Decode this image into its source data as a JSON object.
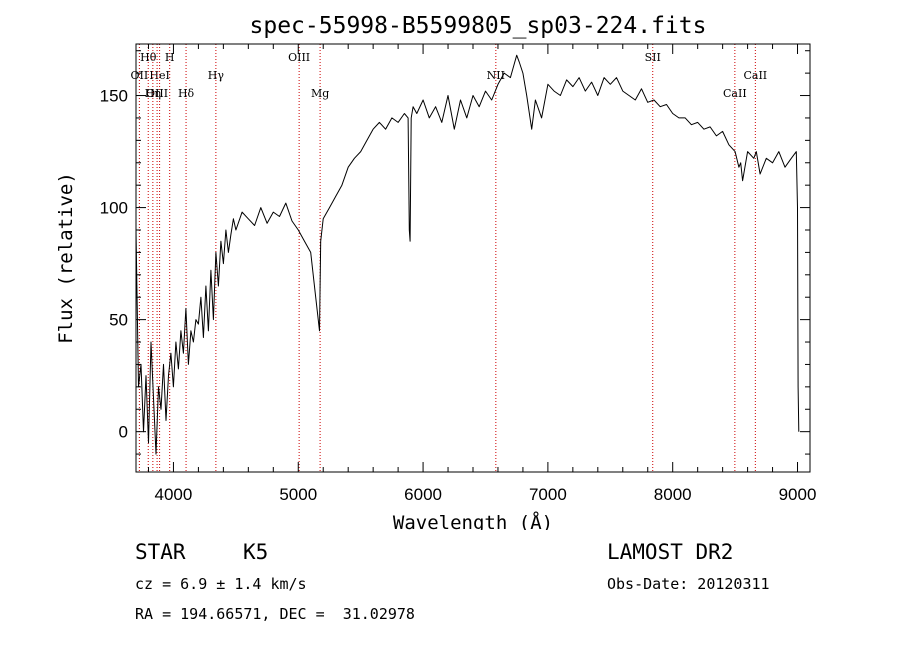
{
  "chart_data": {
    "type": "line",
    "title": "spec-55998-B5599805_sp03-224.fits",
    "xlabel": "Wavelength (Å)",
    "ylabel": "Flux (relative)",
    "xlim": [
      3700,
      9100
    ],
    "ylim": [
      -18,
      173
    ],
    "xticks": [
      4000,
      5000,
      6000,
      7000,
      8000,
      9000
    ],
    "yticks": [
      0,
      50,
      100,
      150
    ],
    "grid": false,
    "line_color": "#000000",
    "marker_color": "#cc0000",
    "series": [
      {
        "x": [
          3700,
          3720,
          3740,
          3760,
          3780,
          3800,
          3820,
          3840,
          3860,
          3880,
          3900,
          3920,
          3940,
          3960,
          3980,
          4000,
          4020,
          4040,
          4060,
          4080,
          4100,
          4120,
          4140,
          4160,
          4180,
          4200,
          4220,
          4240,
          4260,
          4280,
          4300,
          4320,
          4340,
          4360,
          4380,
          4400,
          4420,
          4440,
          4460,
          4480,
          4500,
          4550,
          4600,
          4650,
          4700,
          4750,
          4800,
          4850,
          4900,
          4950,
          5000,
          5050,
          5100,
          5140,
          5170,
          5180,
          5200,
          5250,
          5300,
          5350,
          5400,
          5450,
          5500,
          5550,
          5600,
          5650,
          5700,
          5750,
          5800,
          5850,
          5880,
          5890,
          5896,
          5905,
          5920,
          5950,
          6000,
          6050,
          6100,
          6150,
          6200,
          6250,
          6300,
          6350,
          6400,
          6450,
          6500,
          6550,
          6600,
          6650,
          6700,
          6750,
          6770,
          6800,
          6830,
          6870,
          6900,
          6950,
          7000,
          7050,
          7100,
          7150,
          7200,
          7250,
          7300,
          7350,
          7400,
          7450,
          7500,
          7550,
          7600,
          7650,
          7700,
          7750,
          7800,
          7850,
          7900,
          7950,
          8000,
          8050,
          8100,
          8150,
          8200,
          8250,
          8300,
          8350,
          8400,
          8450,
          8500,
          8530,
          8545,
          8560,
          8600,
          8650,
          8670,
          8700,
          8750,
          8800,
          8850,
          8900,
          8950,
          8990,
          9000,
          9005,
          9010
        ],
        "y": [
          90,
          20,
          30,
          0,
          25,
          -5,
          40,
          15,
          -10,
          20,
          10,
          30,
          5,
          25,
          35,
          20,
          40,
          28,
          45,
          35,
          55,
          30,
          45,
          40,
          50,
          48,
          60,
          42,
          65,
          45,
          72,
          50,
          80,
          65,
          85,
          75,
          90,
          80,
          88,
          95,
          90,
          98,
          95,
          92,
          100,
          93,
          98,
          96,
          102,
          94,
          90,
          85,
          80,
          60,
          45,
          85,
          95,
          100,
          105,
          110,
          118,
          122,
          125,
          130,
          135,
          138,
          135,
          140,
          138,
          142,
          140,
          90,
          85,
          140,
          145,
          142,
          148,
          140,
          145,
          138,
          150,
          135,
          148,
          140,
          150,
          145,
          152,
          148,
          155,
          160,
          158,
          168,
          165,
          160,
          150,
          135,
          148,
          140,
          155,
          152,
          150,
          157,
          154,
          158,
          152,
          156,
          150,
          158,
          155,
          158,
          152,
          150,
          148,
          153,
          147,
          148,
          145,
          146,
          142,
          140,
          140,
          137,
          138,
          135,
          136,
          132,
          134,
          128,
          125,
          118,
          120,
          112,
          125,
          122,
          125,
          115,
          122,
          120,
          125,
          118,
          122,
          125,
          100,
          20,
          0
        ]
      }
    ],
    "line_markers": [
      {
        "label": "Hθ",
        "x": 3798,
        "row": 1
      },
      {
        "label": "H",
        "x": 3970,
        "row": 1
      },
      {
        "label": "OII",
        "x": 3727,
        "row": 2
      },
      {
        "label": "HeI",
        "x": 3889,
        "row": 2
      },
      {
        "label": "Hγ",
        "x": 4340,
        "row": 2
      },
      {
        "label": "NII",
        "x": 6583,
        "row": 2
      },
      {
        "label": "CaII",
        "x": 8662,
        "row": 2
      },
      {
        "label": "OIII",
        "x": 3869,
        "row": 3
      },
      {
        "label": "Hη",
        "x": 3835,
        "row": 3
      },
      {
        "label": "Hδ",
        "x": 4101,
        "row": 3
      },
      {
        "label": "Mg",
        "x": 5175,
        "row": 3
      },
      {
        "label": "CaII",
        "x": 8498,
        "row": 3
      },
      {
        "label": "OIII",
        "x": 5007,
        "row": 1
      },
      {
        "label": "SII",
        "x": 7840,
        "row": 1
      }
    ]
  },
  "info": {
    "object_type": "STAR",
    "subclass": "K5",
    "survey": "LAMOST DR2",
    "cz": "cz = 6.9 ± 1.4 km/s",
    "obs_date": "Obs-Date: 20120311",
    "coords": "RA = 194.66571, DEC =  31.02978"
  }
}
